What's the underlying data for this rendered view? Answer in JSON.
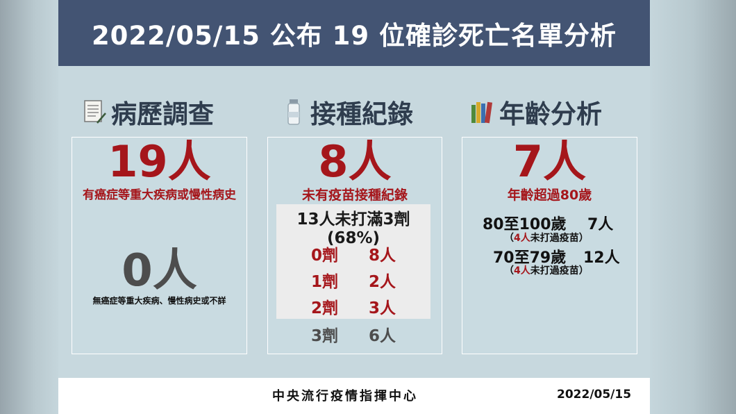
{
  "header": {
    "title": "2022/05/15 公布 19 位確診死亡名單分析"
  },
  "sections": [
    {
      "title": "病歷調查",
      "icon": "document-icon"
    },
    {
      "title": "接種紀錄",
      "icon": "vaccine-vial-icon"
    },
    {
      "title": "年齡分析",
      "icon": "books-icon"
    }
  ],
  "history": {
    "count_with": "19人",
    "label_with": "有癌症等重大疾病或慢性病史",
    "count_without": "0人",
    "label_without": "無癌症等重大疾病、慢性病史或不詳"
  },
  "vaccine": {
    "count": "8人",
    "label": "未有疫苗接種紀錄",
    "box_title": "13人未打滿3劑(68%)",
    "rows": [
      {
        "dose": "0劑",
        "people": "8人"
      },
      {
        "dose": "1劑",
        "people": "2人"
      },
      {
        "dose": "2劑",
        "people": "3人"
      },
      {
        "dose": "3劑",
        "people": "6人"
      }
    ]
  },
  "age": {
    "count": "7人",
    "label": "年齡超過80歲",
    "groups": [
      {
        "range": "80至100歲",
        "people": "7人",
        "sub_open": "（",
        "sub_count": "4人",
        "sub_text": "未打過疫苗",
        "sub_close": "）"
      },
      {
        "range": "70至79歲",
        "people": "12人",
        "sub_open": "（",
        "sub_count": "4人",
        "sub_text": "未打過疫苗",
        "sub_close": "）"
      }
    ]
  },
  "footer": {
    "org": "中央流行疫情指揮中心",
    "date": "2022/05/15"
  },
  "colors": {
    "header_bg": "#435473",
    "accent_red": "#a5161b",
    "background": "#c7d8de"
  }
}
